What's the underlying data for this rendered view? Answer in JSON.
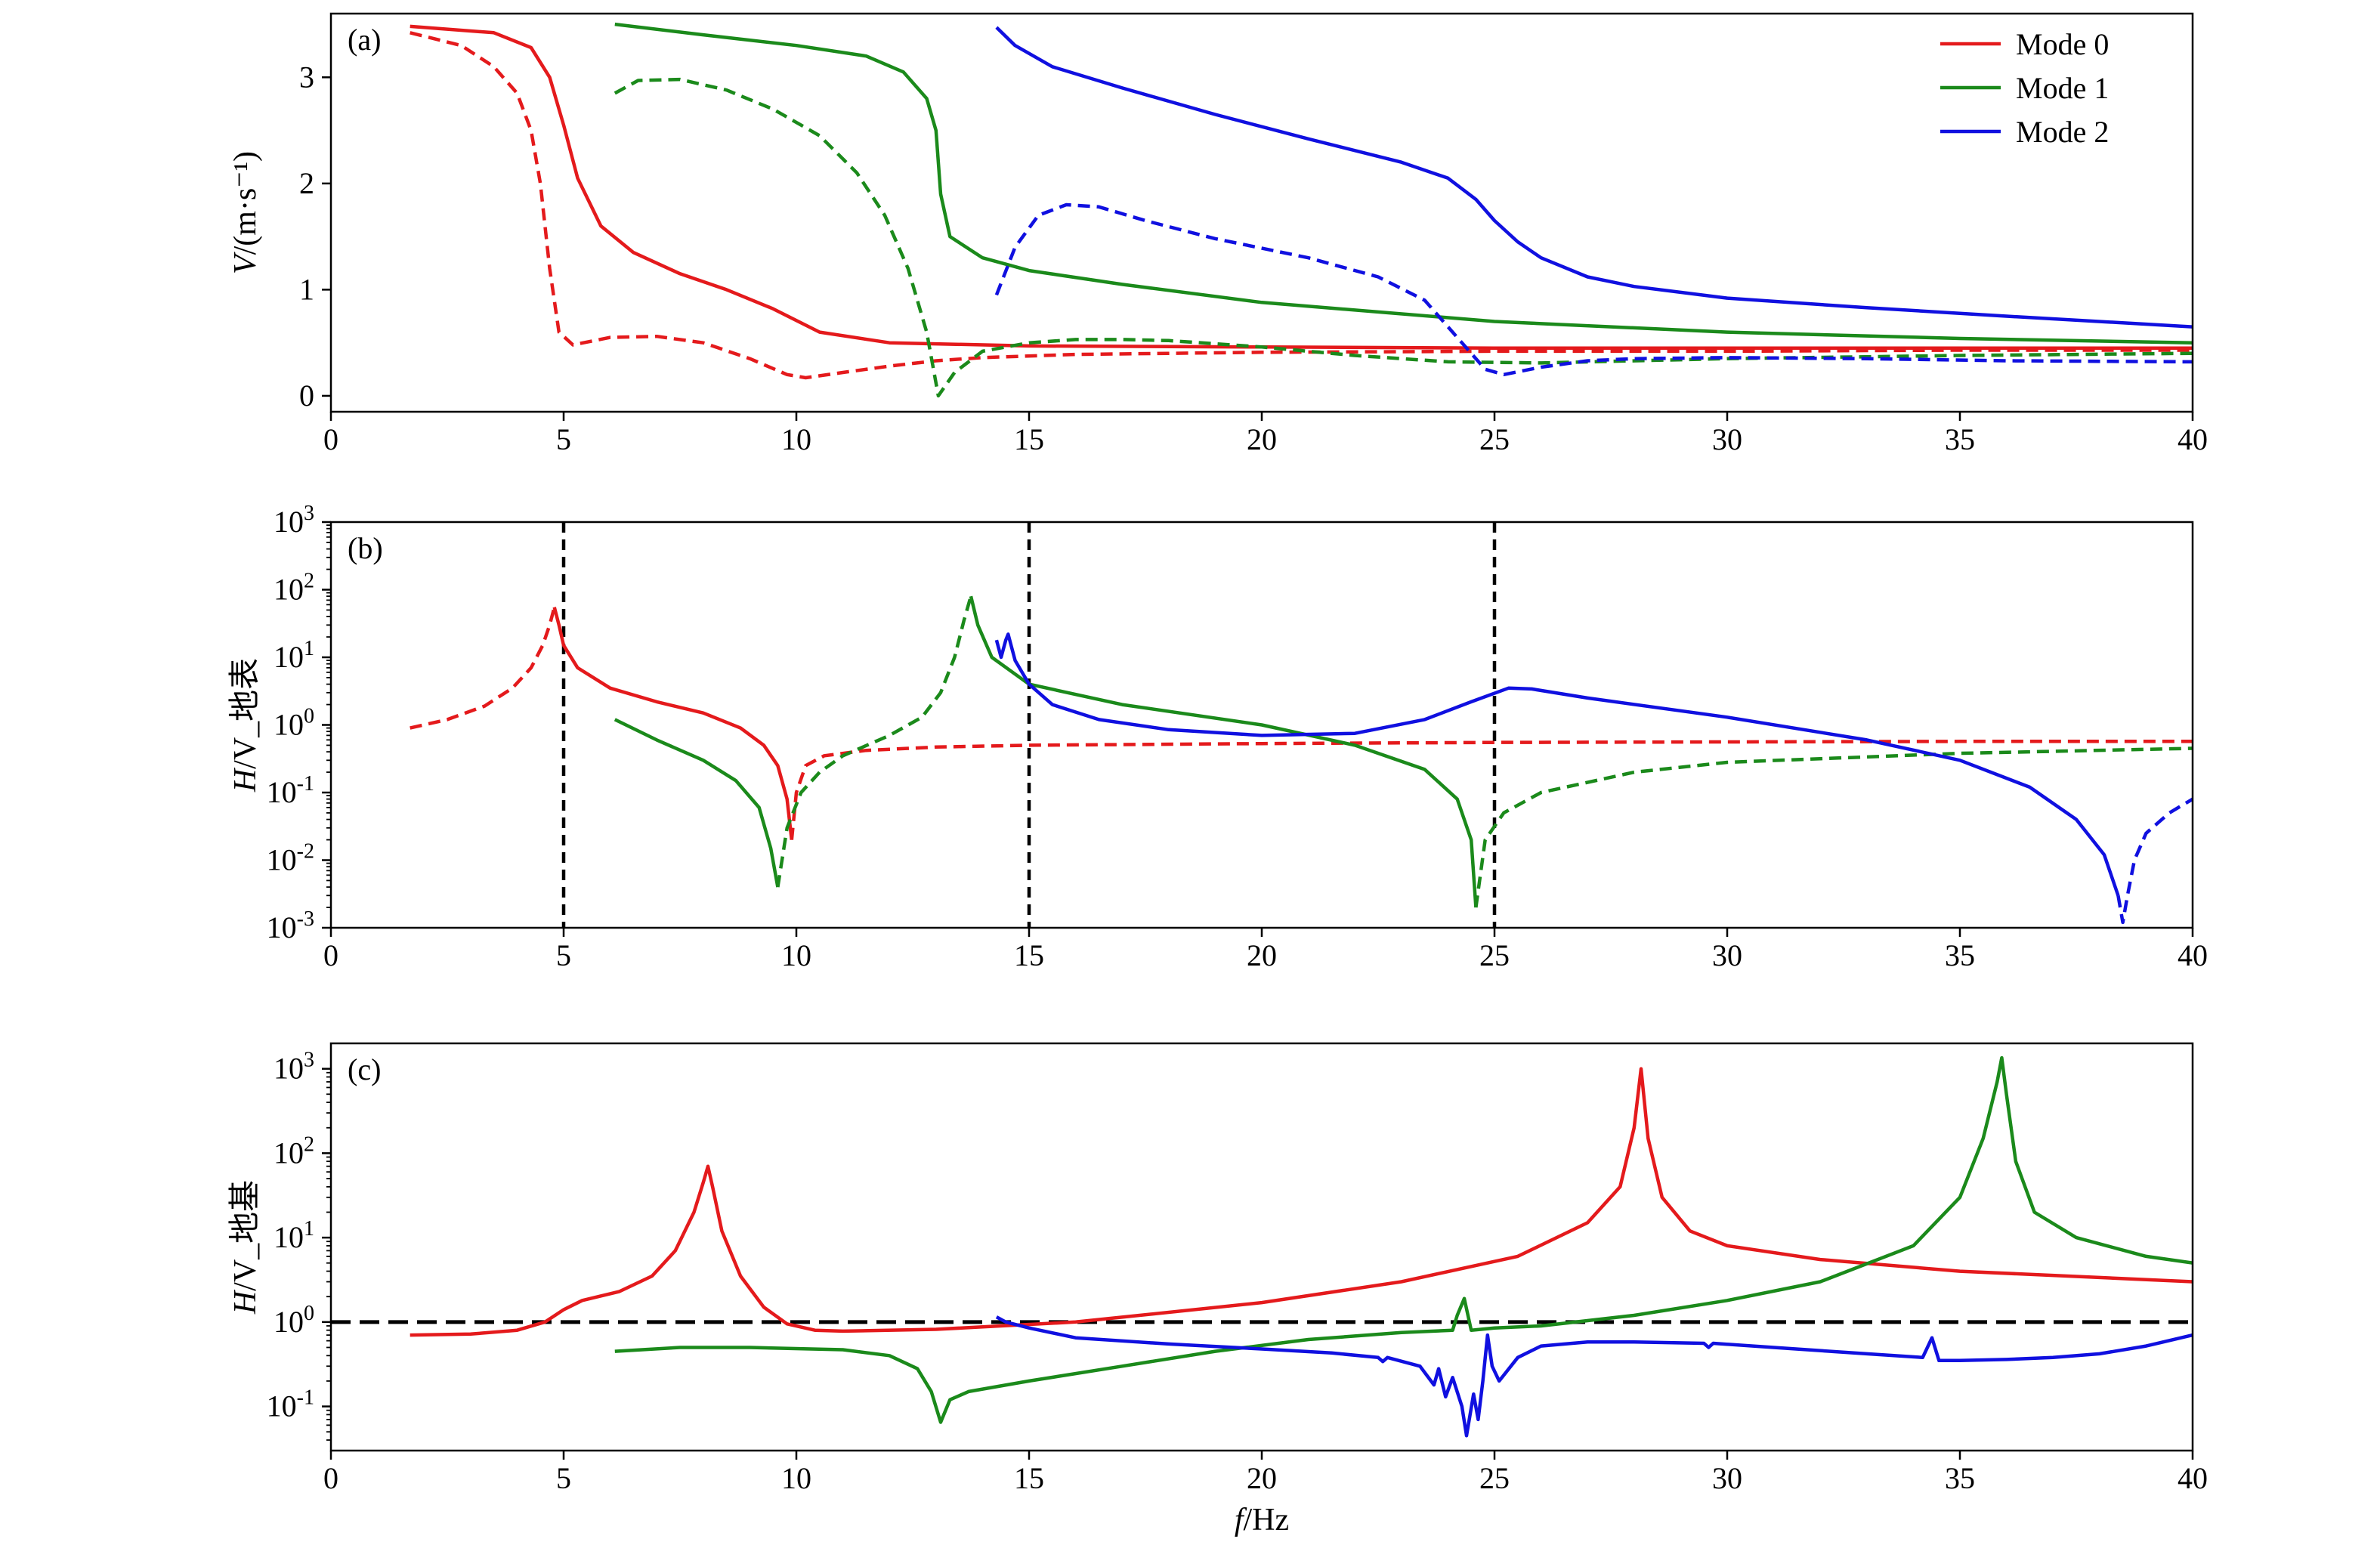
{
  "chart_data": [
    {
      "type": "line",
      "panel_label": "(a)",
      "ylabel": "V/(m·s⁻¹)",
      "xlabel": "",
      "xlim": [
        0,
        40
      ],
      "ylim": [
        -0.15,
        3.6
      ],
      "xticks": [
        0,
        5,
        10,
        15,
        20,
        25,
        30,
        35,
        40
      ],
      "yticks": [
        0,
        1,
        2,
        3
      ],
      "yscale": "linear",
      "grid": false,
      "legend": {
        "position": "top-right",
        "entries": [
          "Mode 0",
          "Mode 1",
          "Mode 2"
        ]
      },
      "series": [
        {
          "name": "Mode 0",
          "color": "#e41a1c",
          "style": "solid",
          "x": [
            1.7,
            3.5,
            4.3,
            4.7,
            5.0,
            5.3,
            5.8,
            6.5,
            7.5,
            8.5,
            9.5,
            10.5,
            12,
            15,
            20,
            25,
            30,
            35,
            40
          ],
          "y": [
            3.48,
            3.42,
            3.28,
            3.0,
            2.55,
            2.05,
            1.6,
            1.35,
            1.15,
            1.0,
            0.82,
            0.6,
            0.5,
            0.47,
            0.46,
            0.45,
            0.45,
            0.45,
            0.45
          ]
        },
        {
          "name": "Mode 0",
          "color": "#e41a1c",
          "style": "dashed",
          "x": [
            1.7,
            2.8,
            3.5,
            4.0,
            4.3,
            4.5,
            4.7,
            4.9,
            5.2,
            6.0,
            7.0,
            8.0,
            9.0,
            9.8,
            10.2,
            11,
            12,
            13,
            14,
            16,
            20,
            25,
            30,
            35,
            40
          ],
          "y": [
            3.42,
            3.3,
            3.1,
            2.85,
            2.5,
            2.0,
            1.2,
            0.6,
            0.48,
            0.55,
            0.56,
            0.5,
            0.35,
            0.2,
            0.17,
            0.22,
            0.28,
            0.33,
            0.36,
            0.39,
            0.41,
            0.42,
            0.42,
            0.43,
            0.43
          ]
        },
        {
          "name": "Mode 1",
          "color": "#1b8a1b",
          "style": "solid",
          "x": [
            6.1,
            8,
            10,
            11.5,
            12.3,
            12.8,
            13.0,
            13.1,
            13.3,
            14,
            15,
            17,
            20,
            25,
            30,
            35,
            40
          ],
          "y": [
            3.5,
            3.4,
            3.3,
            3.2,
            3.05,
            2.8,
            2.5,
            1.9,
            1.5,
            1.3,
            1.18,
            1.05,
            0.88,
            0.7,
            0.6,
            0.54,
            0.5
          ]
        },
        {
          "name": "Mode 1",
          "color": "#1b8a1b",
          "style": "dashed",
          "x": [
            6.1,
            6.6,
            7.5,
            8.5,
            9.5,
            10.5,
            11.3,
            11.9,
            12.4,
            12.8,
            13.05,
            13.4,
            14,
            15,
            16,
            17,
            18,
            20,
            22,
            24,
            26,
            30,
            35,
            40
          ],
          "y": [
            2.85,
            2.97,
            2.98,
            2.88,
            2.7,
            2.45,
            2.1,
            1.7,
            1.2,
            0.6,
            0.0,
            0.22,
            0.42,
            0.5,
            0.53,
            0.53,
            0.52,
            0.46,
            0.38,
            0.32,
            0.31,
            0.35,
            0.38,
            0.4
          ]
        },
        {
          "name": "Mode 2",
          "color": "#1010e0",
          "style": "solid",
          "x": [
            14.3,
            14.7,
            15.5,
            17,
            19,
            21,
            23,
            24,
            24.6,
            25.0,
            25.5,
            26,
            27,
            28,
            30,
            33,
            36,
            40
          ],
          "y": [
            3.47,
            3.3,
            3.1,
            2.9,
            2.65,
            2.42,
            2.2,
            2.05,
            1.85,
            1.65,
            1.45,
            1.3,
            1.12,
            1.03,
            0.92,
            0.83,
            0.75,
            0.65
          ]
        },
        {
          "name": "Mode 2",
          "color": "#1010e0",
          "style": "dashed",
          "x": [
            14.3,
            14.7,
            15.2,
            15.8,
            16.5,
            17.5,
            19,
            21,
            22.5,
            23.5,
            24.3,
            24.8,
            25.2,
            26,
            27,
            28,
            30,
            33,
            36,
            40
          ],
          "y": [
            0.95,
            1.4,
            1.7,
            1.8,
            1.78,
            1.65,
            1.48,
            1.3,
            1.12,
            0.9,
            0.5,
            0.25,
            0.2,
            0.27,
            0.33,
            0.35,
            0.36,
            0.35,
            0.33,
            0.32
          ]
        }
      ]
    },
    {
      "type": "line",
      "panel_label": "(b)",
      "ylabel": "H/V_地表",
      "xlabel": "",
      "xlim": [
        0,
        40
      ],
      "ylim": [
        0.001,
        1000
      ],
      "yscale": "log",
      "xticks": [
        0,
        5,
        10,
        15,
        20,
        25,
        30,
        35,
        40
      ],
      "yticks": [
        {
          "base": "10",
          "exp": "-3",
          "value": 0.001
        },
        {
          "base": "10",
          "exp": "-2",
          "value": 0.01
        },
        {
          "base": "10",
          "exp": "-1",
          "value": 0.1
        },
        {
          "base": "10",
          "exp": "0",
          "value": 1
        },
        {
          "base": "10",
          "exp": "1",
          "value": 10
        },
        {
          "base": "10",
          "exp": "2",
          "value": 100
        },
        {
          "base": "10",
          "exp": "3",
          "value": 1000
        }
      ],
      "grid": false,
      "vlines": [
        5,
        15,
        25
      ],
      "series": [
        {
          "name": "Mode 0",
          "color": "#e41a1c",
          "style": "dashed",
          "x": [
            1.7,
            2.5,
            3.3,
            3.9,
            4.3,
            4.55,
            4.7,
            4.8
          ],
          "y": [
            0.9,
            1.2,
            1.9,
            3.5,
            7,
            15,
            30,
            55
          ]
        },
        {
          "name": "Mode 0",
          "color": "#e41a1c",
          "style": "solid",
          "x": [
            4.8,
            4.9,
            5.0,
            5.3,
            6,
            7,
            8,
            8.8,
            9.3,
            9.6,
            9.8,
            9.9
          ],
          "y": [
            55,
            30,
            15,
            7,
            3.5,
            2.2,
            1.5,
            0.9,
            0.5,
            0.25,
            0.08,
            0.02
          ]
        },
        {
          "name": "Mode 0",
          "color": "#e41a1c",
          "style": "dashed",
          "x": [
            9.9,
            10.0,
            10.2,
            10.6,
            11.5,
            13,
            15,
            20,
            25,
            30,
            35,
            40
          ],
          "y": [
            0.02,
            0.1,
            0.25,
            0.35,
            0.42,
            0.47,
            0.5,
            0.53,
            0.55,
            0.56,
            0.57,
            0.57
          ]
        },
        {
          "name": "Mode 1",
          "color": "#1b8a1b",
          "style": "solid",
          "x": [
            6.1,
            7,
            8,
            8.7,
            9.2,
            9.45,
            9.6
          ],
          "y": [
            1.2,
            0.6,
            0.3,
            0.15,
            0.06,
            0.015,
            0.004
          ]
        },
        {
          "name": "Mode 1",
          "color": "#1b8a1b",
          "style": "dashed",
          "x": [
            9.6,
            9.8,
            10.1,
            10.5,
            11,
            12,
            12.7,
            13.1,
            13.4,
            13.6,
            13.75
          ],
          "y": [
            0.004,
            0.03,
            0.1,
            0.2,
            0.35,
            0.7,
            1.3,
            3,
            10,
            35,
            80
          ]
        },
        {
          "name": "Mode 1",
          "color": "#1b8a1b",
          "style": "solid",
          "x": [
            13.75,
            13.9,
            14.2,
            15,
            17,
            20,
            22,
            23.5,
            24.2,
            24.5,
            24.6
          ],
          "y": [
            80,
            30,
            10,
            4,
            2,
            1,
            0.5,
            0.22,
            0.08,
            0.02,
            0.002
          ]
        },
        {
          "name": "Mode 1",
          "color": "#1b8a1b",
          "style": "dashed",
          "x": [
            24.6,
            24.8,
            25.2,
            26,
            28,
            30,
            35,
            40
          ],
          "y": [
            0.002,
            0.02,
            0.05,
            0.1,
            0.2,
            0.28,
            0.38,
            0.45
          ]
        },
        {
          "name": "Mode 2",
          "color": "#1010e0",
          "style": "solid",
          "x": [
            14.3,
            14.4,
            14.5,
            14.55,
            14.7,
            15.0,
            15.5,
            16.5,
            18,
            20,
            22,
            23.5,
            24.5,
            25.3,
            25.8,
            27,
            30,
            33,
            35,
            36.5,
            37.5,
            38.1,
            38.4
          ],
          "y": [
            18,
            10,
            18,
            22,
            9,
            4,
            2,
            1.2,
            0.85,
            0.7,
            0.75,
            1.2,
            2.2,
            3.5,
            3.4,
            2.5,
            1.3,
            0.6,
            0.3,
            0.12,
            0.04,
            0.012,
            0.003
          ]
        },
        {
          "name": "Mode 2",
          "color": "#1010e0",
          "style": "dashed",
          "x": [
            38.4,
            38.5,
            38.6,
            38.75,
            39.0,
            39.5,
            40
          ],
          "y": [
            0.003,
            0.0012,
            0.003,
            0.01,
            0.025,
            0.05,
            0.08
          ]
        }
      ]
    },
    {
      "type": "line",
      "panel_label": "(c)",
      "ylabel": "H/V_地基",
      "xlabel": "f/Hz",
      "xlim": [
        0,
        40
      ],
      "ylim": [
        0.03,
        2000
      ],
      "yscale": "log",
      "xticks": [
        0,
        5,
        10,
        15,
        20,
        25,
        30,
        35,
        40
      ],
      "yticks": [
        {
          "base": "10",
          "exp": "-1",
          "value": 0.1
        },
        {
          "base": "10",
          "exp": "0",
          "value": 1
        },
        {
          "base": "10",
          "exp": "1",
          "value": 10
        },
        {
          "base": "10",
          "exp": "2",
          "value": 100
        },
        {
          "base": "10",
          "exp": "3",
          "value": 1000
        }
      ],
      "grid": false,
      "hline": 1,
      "series": [
        {
          "name": "Mode 0",
          "color": "#e41a1c",
          "style": "solid",
          "x": [
            1.7,
            3,
            4,
            4.6,
            5.0,
            5.4,
            6.2,
            6.9,
            7.4,
            7.8,
            8.0,
            8.1,
            8.2,
            8.4,
            8.8,
            9.3,
            9.8,
            10.4,
            11,
            13,
            16,
            20,
            23,
            25.5,
            27,
            27.7,
            28.0,
            28.15,
            28.3,
            28.6,
            29.2,
            30,
            32,
            35,
            40
          ],
          "y": [
            0.7,
            0.72,
            0.8,
            1.0,
            1.4,
            1.8,
            2.3,
            3.5,
            7,
            20,
            45,
            70,
            40,
            12,
            3.5,
            1.5,
            0.95,
            0.8,
            0.78,
            0.82,
            1.0,
            1.7,
            3.0,
            6,
            15,
            40,
            200,
            1000,
            150,
            30,
            12,
            8,
            5.5,
            4,
            3
          ]
        },
        {
          "name": "Mode 1",
          "color": "#1b8a1b",
          "style": "solid",
          "x": [
            6.1,
            7.5,
            9,
            11,
            12,
            12.6,
            12.9,
            13.1,
            13.3,
            13.7,
            15,
            17,
            19,
            21,
            23,
            24.1,
            24.2,
            24.35,
            24.5,
            25,
            26,
            28,
            30,
            32,
            34,
            35,
            35.5,
            35.8,
            35.9,
            36.0,
            36.2,
            36.6,
            37.5,
            39,
            40
          ],
          "y": [
            0.45,
            0.5,
            0.5,
            0.47,
            0.4,
            0.28,
            0.15,
            0.065,
            0.12,
            0.15,
            0.2,
            0.3,
            0.45,
            0.62,
            0.75,
            0.8,
            1.2,
            1.9,
            0.8,
            0.85,
            0.9,
            1.2,
            1.8,
            3,
            8,
            30,
            150,
            700,
            1350,
            500,
            80,
            20,
            10,
            6,
            5
          ]
        },
        {
          "name": "Mode 2",
          "color": "#1010e0",
          "style": "solid",
          "x": [
            14.3,
            14.5,
            15,
            16,
            18,
            20,
            21.5,
            22.5,
            22.6,
            22.7,
            23.4,
            23.7,
            23.8,
            23.95,
            24.1,
            24.3,
            24.4,
            24.55,
            24.65,
            24.75,
            24.85,
            24.95,
            25.1,
            25.5,
            26,
            27,
            28,
            29.5,
            29.6,
            29.7,
            31,
            33,
            34.2,
            34.4,
            34.55,
            35,
            36,
            37,
            38,
            39,
            40
          ],
          "y": [
            1.15,
            1.0,
            0.85,
            0.65,
            0.55,
            0.48,
            0.43,
            0.38,
            0.34,
            0.38,
            0.3,
            0.18,
            0.28,
            0.13,
            0.22,
            0.1,
            0.045,
            0.14,
            0.07,
            0.2,
            0.7,
            0.3,
            0.2,
            0.38,
            0.52,
            0.58,
            0.58,
            0.56,
            0.5,
            0.56,
            0.5,
            0.42,
            0.38,
            0.65,
            0.35,
            0.35,
            0.36,
            0.38,
            0.42,
            0.52,
            0.7
          ]
        }
      ]
    }
  ]
}
